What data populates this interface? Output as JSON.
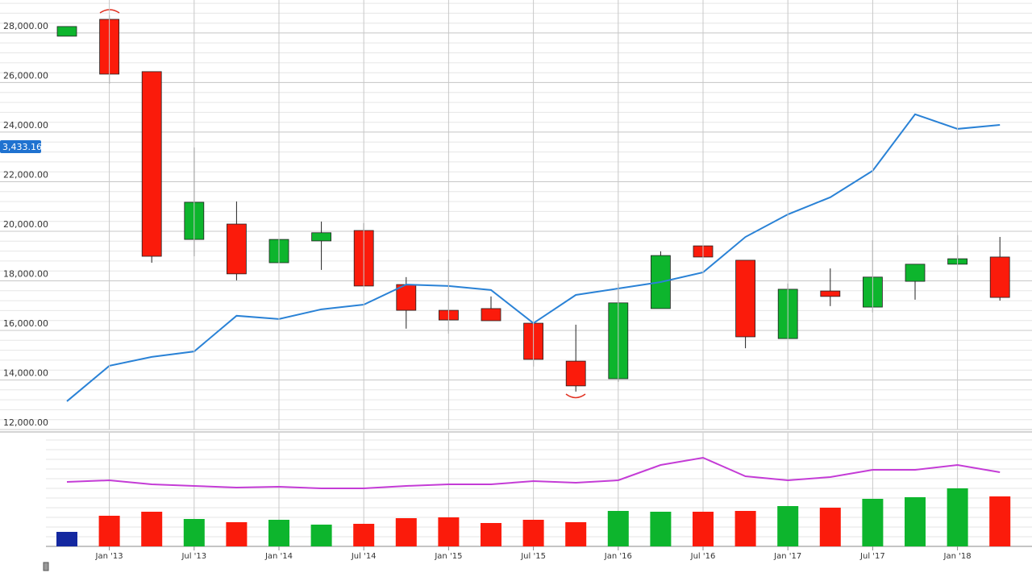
{
  "chart_data": [
    {
      "type": "candlestick",
      "open": [
        27870,
        28550,
        26440,
        19670,
        20290,
        18730,
        19610,
        20030,
        17850,
        16810,
        16880,
        16290,
        14760,
        14050,
        16880,
        19410,
        18830,
        15670,
        17590,
        16940,
        17980,
        18670,
        18960
      ],
      "high": [
        28260,
        28715,
        26440,
        23380,
        21200,
        21630,
        20390,
        20330,
        18150,
        18860,
        17370,
        16290,
        16230,
        17890,
        19190,
        20070,
        18830,
        17890,
        18500,
        19640,
        18670,
        19840,
        19770
      ],
      "low": [
        27870,
        25950,
        18730,
        18990,
        18020,
        18730,
        18440,
        17790,
        16070,
        15870,
        16390,
        14540,
        13530,
        13920,
        16880,
        18960,
        15280,
        15670,
        16980,
        16720,
        17240,
        18640,
        17200
      ],
      "close": [
        28260,
        26340,
        18990,
        21170,
        18280,
        19670,
        19940,
        17790,
        16810,
        16420,
        16390,
        14830,
        13760,
        17110,
        19020,
        18960,
        15740,
        17660,
        17370,
        18150,
        18670,
        18890,
        17330
      ],
      "up_color": "#0db52d",
      "down_color": "#fb1b0b",
      "line": {
        "color": "#2a82d6",
        "values": [
          13140,
          14570,
          14930,
          15150,
          16590,
          16460,
          16850,
          17040,
          17850,
          17790,
          17630,
          16290,
          17430,
          17690,
          17950,
          18340,
          19770,
          20680,
          21370,
          22440,
          24720,
          24130,
          24290
        ]
      },
      "price_label": "3,433.16",
      "ylim": [
        12000,
        29330
      ],
      "yticks": [
        {
          "value": 12000,
          "label": "12,000.00"
        },
        {
          "value": 14000,
          "label": "14,000.00"
        },
        {
          "value": 16000,
          "label": "16,000.00"
        },
        {
          "value": 18000,
          "label": "18,000.00"
        },
        {
          "value": 20000,
          "label": "20,000.00"
        },
        {
          "value": 22000,
          "label": "22,000.00"
        },
        {
          "value": 24000,
          "label": "24,000.00"
        },
        {
          "value": 26000,
          "label": "26,000.00"
        },
        {
          "value": 28000,
          "label": "28,000.00"
        }
      ],
      "grid": true
    },
    {
      "type": "bar",
      "categories": [
        null,
        "Jan '13",
        null,
        "Jul '13",
        null,
        "Jan '14",
        null,
        "Jul '14",
        null,
        "Jan '15",
        null,
        "Jul '15",
        null,
        "Jan '16",
        null,
        "Jul '16",
        null,
        "Jan '17",
        null,
        "Jul '17",
        null,
        "Jan '18",
        null
      ],
      "values": [
        18,
        38,
        43,
        34,
        30,
        33,
        27,
        28,
        35,
        36,
        29,
        33,
        30,
        44,
        43,
        43,
        44,
        50,
        48,
        59,
        61,
        72,
        62
      ],
      "colors": [
        "#1428a0",
        "#fb1b0b",
        "#fb1b0b",
        "#0db52d",
        "#fb1b0b",
        "#0db52d",
        "#0db52d",
        "#fb1b0b",
        "#fb1b0b",
        "#fb1b0b",
        "#fb1b0b",
        "#fb1b0b",
        "#fb1b0b",
        "#0db52d",
        "#0db52d",
        "#fb1b0b",
        "#fb1b0b",
        "#0db52d",
        "#fb1b0b",
        "#0db52d",
        "#0db52d",
        "#0db52d",
        "#fb1b0b"
      ],
      "line": {
        "color": "#c43cd6",
        "values": [
          80,
          82,
          77,
          75,
          73,
          74,
          72,
          72,
          75,
          77,
          77,
          81,
          79,
          82,
          101,
          110,
          87,
          82,
          86,
          95,
          95,
          101,
          92
        ]
      },
      "ylim": [
        0,
        141
      ]
    }
  ]
}
